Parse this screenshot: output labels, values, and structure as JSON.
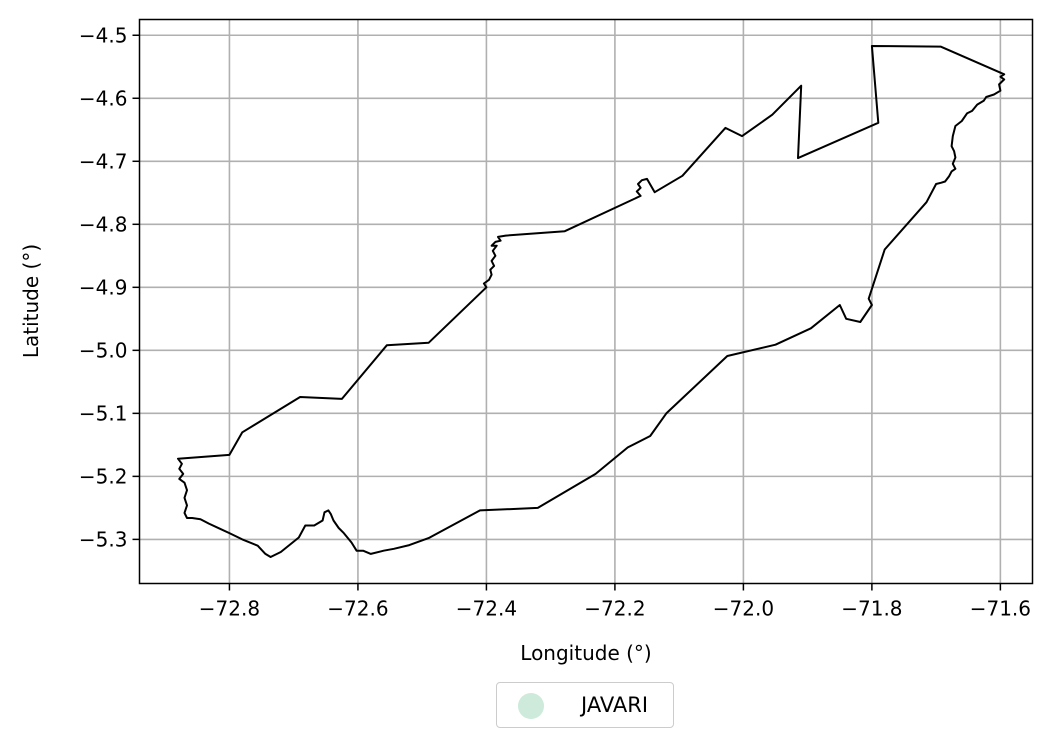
{
  "chart_data": {
    "type": "map",
    "xlabel": "Longitude (°)",
    "ylabel": "Latitude (°)",
    "xlim": [
      -72.94,
      -71.55
    ],
    "ylim": [
      -5.37,
      -4.475
    ],
    "x_ticks": [
      -72.8,
      -72.6,
      -72.4,
      -72.2,
      -72.0,
      -71.8,
      -71.6
    ],
    "x_tick_labels": [
      "−72.8",
      "−72.6",
      "−72.4",
      "−72.2",
      "−72.0",
      "−71.8",
      "−71.6"
    ],
    "y_ticks": [
      -4.5,
      -4.6,
      -4.7,
      -4.8,
      -4.9,
      -5.0,
      -5.1,
      -5.2,
      -5.3
    ],
    "y_tick_labels": [
      "−4.5",
      "−4.6",
      "−4.7",
      "−4.8",
      "−4.9",
      "−5.0",
      "−5.1",
      "−5.2",
      "−5.3"
    ],
    "grid": true,
    "legend": {
      "placement": "below plot, centered",
      "entries": [
        {
          "label": "JAVARI",
          "color": "#cdeadb"
        }
      ]
    },
    "features": [
      {
        "name": "JAVARI",
        "edge_color": "#000000",
        "fill": "none",
        "polygon": [
          [
            -72.88,
            -5.172
          ],
          [
            -72.8,
            -5.166
          ],
          [
            -72.78,
            -5.13
          ],
          [
            -72.69,
            -5.074
          ],
          [
            -72.625,
            -5.077
          ],
          [
            -72.555,
            -4.992
          ],
          [
            -72.49,
            -4.988
          ],
          [
            -72.4,
            -4.9
          ],
          [
            -72.404,
            -4.894
          ],
          [
            -72.396,
            -4.888
          ],
          [
            -72.392,
            -4.88
          ],
          [
            -72.394,
            -4.872
          ],
          [
            -72.388,
            -4.866
          ],
          [
            -72.392,
            -4.858
          ],
          [
            -72.386,
            -4.85
          ],
          [
            -72.39,
            -4.842
          ],
          [
            -72.384,
            -4.834
          ],
          [
            -72.392,
            -4.834
          ],
          [
            -72.386,
            -4.828
          ],
          [
            -72.378,
            -4.826
          ],
          [
            -72.382,
            -4.82
          ],
          [
            -72.37,
            -4.818
          ],
          [
            -72.278,
            -4.811
          ],
          [
            -72.16,
            -4.755
          ],
          [
            -72.166,
            -4.748
          ],
          [
            -72.16,
            -4.742
          ],
          [
            -72.164,
            -4.736
          ],
          [
            -72.158,
            -4.73
          ],
          [
            -72.15,
            -4.728
          ],
          [
            -72.138,
            -4.749
          ],
          [
            -72.095,
            -4.723
          ],
          [
            -72.028,
            -4.647
          ],
          [
            -72.002,
            -4.66
          ],
          [
            -71.955,
            -4.626
          ],
          [
            -71.91,
            -4.58
          ],
          [
            -71.915,
            -4.695
          ],
          [
            -71.79,
            -4.639
          ],
          [
            -71.8,
            -4.517
          ],
          [
            -71.693,
            -4.518
          ],
          [
            -71.594,
            -4.562
          ],
          [
            -71.6,
            -4.566
          ],
          [
            -71.594,
            -4.57
          ],
          [
            -71.602,
            -4.578
          ],
          [
            -71.6,
            -4.588
          ],
          [
            -71.61,
            -4.594
          ],
          [
            -71.622,
            -4.598
          ],
          [
            -71.626,
            -4.604
          ],
          [
            -71.636,
            -4.61
          ],
          [
            -71.644,
            -4.62
          ],
          [
            -71.652,
            -4.624
          ],
          [
            -71.66,
            -4.636
          ],
          [
            -71.67,
            -4.644
          ],
          [
            -71.674,
            -4.66
          ],
          [
            -71.676,
            -4.676
          ],
          [
            -71.672,
            -4.684
          ],
          [
            -71.67,
            -4.694
          ],
          [
            -71.674,
            -4.704
          ],
          [
            -71.67,
            -4.712
          ],
          [
            -71.676,
            -4.716
          ],
          [
            -71.68,
            -4.724
          ],
          [
            -71.686,
            -4.732
          ],
          [
            -71.692,
            -4.734
          ],
          [
            -71.7,
            -4.736
          ],
          [
            -71.715,
            -4.765
          ],
          [
            -71.78,
            -4.84
          ],
          [
            -71.805,
            -4.918
          ],
          [
            -71.8,
            -4.928
          ],
          [
            -71.818,
            -4.955
          ],
          [
            -71.84,
            -4.95
          ],
          [
            -71.85,
            -4.928
          ],
          [
            -71.895,
            -4.965
          ],
          [
            -71.95,
            -4.991
          ],
          [
            -72.025,
            -5.009
          ],
          [
            -72.12,
            -5.1
          ],
          [
            -72.145,
            -5.136
          ],
          [
            -72.18,
            -5.154
          ],
          [
            -72.23,
            -5.196
          ],
          [
            -72.32,
            -5.25
          ],
          [
            -72.41,
            -5.254
          ],
          [
            -72.49,
            -5.298
          ],
          [
            -72.52,
            -5.309
          ],
          [
            -72.544,
            -5.315
          ],
          [
            -72.56,
            -5.318
          ],
          [
            -72.58,
            -5.323
          ],
          [
            -72.592,
            -5.318
          ],
          [
            -72.602,
            -5.318
          ],
          [
            -72.61,
            -5.305
          ],
          [
            -72.622,
            -5.29
          ],
          [
            -72.63,
            -5.282
          ],
          [
            -72.638,
            -5.27
          ],
          [
            -72.642,
            -5.26
          ],
          [
            -72.646,
            -5.254
          ],
          [
            -72.652,
            -5.257
          ],
          [
            -72.655,
            -5.27
          ],
          [
            -72.668,
            -5.278
          ],
          [
            -72.682,
            -5.278
          ],
          [
            -72.692,
            -5.297
          ],
          [
            -72.72,
            -5.32
          ],
          [
            -72.736,
            -5.328
          ],
          [
            -72.744,
            -5.323
          ],
          [
            -72.756,
            -5.31
          ],
          [
            -72.78,
            -5.3
          ],
          [
            -72.8,
            -5.29
          ],
          [
            -72.815,
            -5.283
          ],
          [
            -72.832,
            -5.275
          ],
          [
            -72.845,
            -5.268
          ],
          [
            -72.858,
            -5.266
          ],
          [
            -72.866,
            -5.266
          ],
          [
            -72.87,
            -5.258
          ],
          [
            -72.866,
            -5.246
          ],
          [
            -72.87,
            -5.234
          ],
          [
            -72.866,
            -5.222
          ],
          [
            -72.87,
            -5.21
          ],
          [
            -72.878,
            -5.204
          ],
          [
            -72.872,
            -5.196
          ],
          [
            -72.878,
            -5.188
          ],
          [
            -72.874,
            -5.18
          ],
          [
            -72.88,
            -5.172
          ]
        ]
      }
    ]
  }
}
